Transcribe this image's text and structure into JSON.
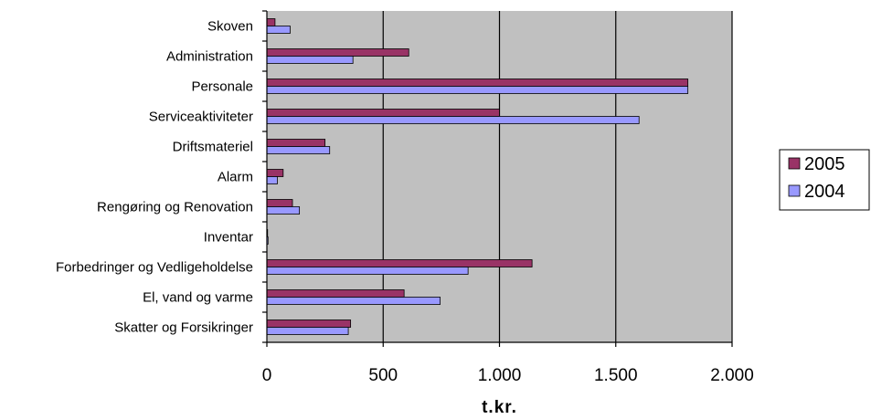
{
  "chart_data": {
    "type": "bar",
    "orientation": "horizontal",
    "categories": [
      "Skoven",
      "Administration",
      "Personale",
      "Serviceaktiviteter",
      "Driftsmateriel",
      "Alarm",
      "Rengøring og Renovation",
      "Inventar",
      "Forbedringer og Vedligeholdelse",
      "El, vand og varme",
      "Skatter og Forsikringer"
    ],
    "series": [
      {
        "name": "2005",
        "color": "#993366",
        "values": [
          35,
          610,
          1810,
          1000,
          250,
          70,
          110,
          3,
          1140,
          590,
          360
        ]
      },
      {
        "name": "2004",
        "color": "#9999ff",
        "values": [
          100,
          370,
          1810,
          1600,
          270,
          45,
          140,
          5,
          865,
          745,
          350
        ]
      }
    ],
    "xlabel": "t.kr.",
    "xlim": [
      0,
      2000
    ],
    "xticks": [
      0,
      500,
      1000,
      1500,
      2000
    ],
    "xtick_labels": [
      "0",
      "500",
      "1.000",
      "1.500",
      "2.000"
    ],
    "plot_background": "#c0c0c0",
    "grid": true,
    "legend_position": "right"
  }
}
